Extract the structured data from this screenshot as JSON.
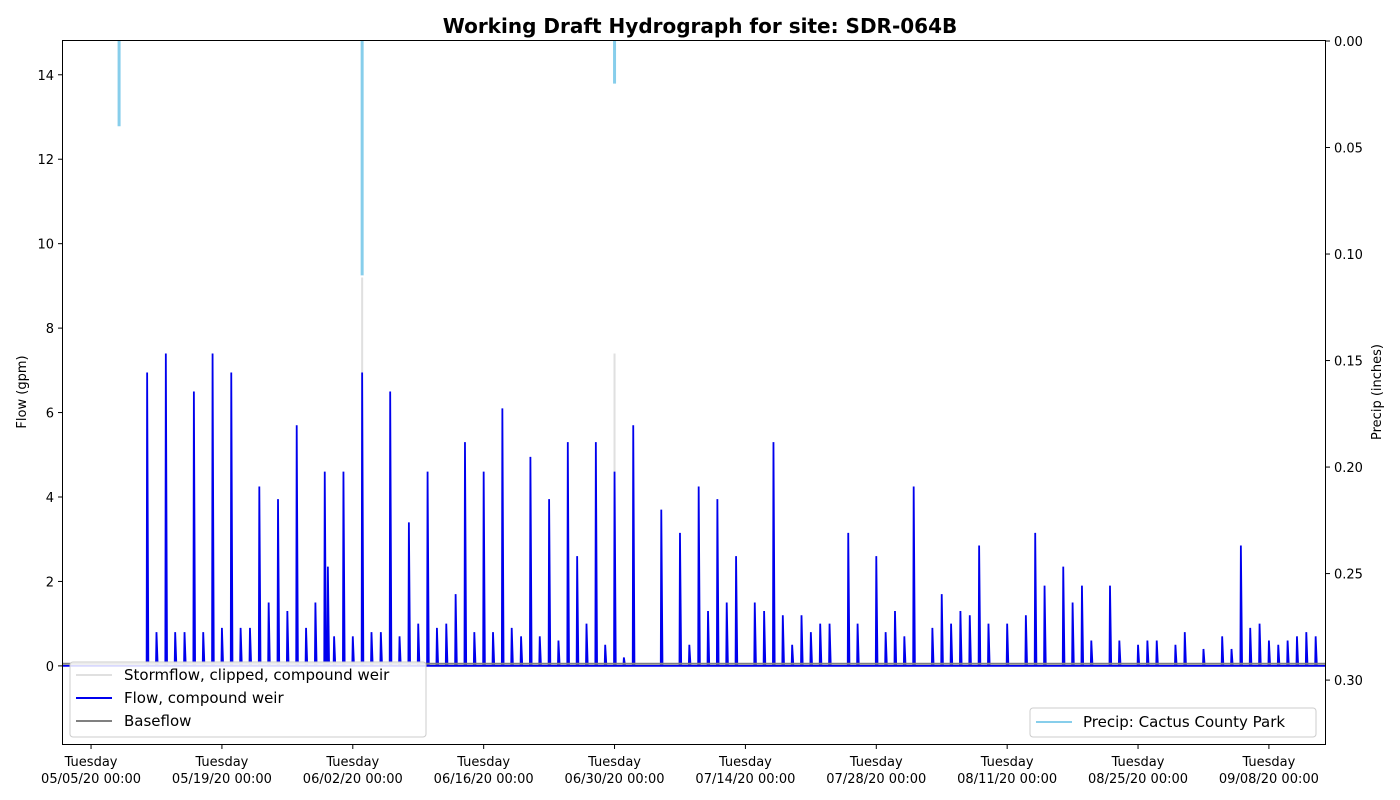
{
  "chart_data": {
    "type": "line",
    "title": "Working Draft Hydrograph for site: SDR-064B",
    "ylabel_left": "Flow (gpm)",
    "ylabel_right": "Precip (inches)",
    "x_axis": {
      "range": [
        "2020-05-02 00:00",
        "2020-09-14 00:00"
      ],
      "ticks": [
        {
          "date": "2020-05-05",
          "line1": "Tuesday",
          "line2": "05/05/20 00:00"
        },
        {
          "date": "2020-05-19",
          "line1": "Tuesday",
          "line2": "05/19/20 00:00"
        },
        {
          "date": "2020-06-02",
          "line1": "Tuesday",
          "line2": "06/02/20 00:00"
        },
        {
          "date": "2020-06-16",
          "line1": "Tuesday",
          "line2": "06/16/20 00:00"
        },
        {
          "date": "2020-06-30",
          "line1": "Tuesday",
          "line2": "06/30/20 00:00"
        },
        {
          "date": "2020-07-14",
          "line1": "Tuesday",
          "line2": "07/14/20 00:00"
        },
        {
          "date": "2020-07-28",
          "line1": "Tuesday",
          "line2": "07/28/20 00:00"
        },
        {
          "date": "2020-08-11",
          "line1": "Tuesday",
          "line2": "08/11/20 00:00"
        },
        {
          "date": "2020-08-25",
          "line1": "Tuesday",
          "line2": "08/25/20 00:00"
        },
        {
          "date": "2020-09-08",
          "line1": "Tuesday",
          "line2": "09/08/20 00:00"
        }
      ]
    },
    "y_left": {
      "range": [
        -1.85,
        14.8
      ],
      "ticks": [
        {
          "v": 0,
          "label": "0"
        },
        {
          "v": 2,
          "label": "2"
        },
        {
          "v": 4,
          "label": "4"
        },
        {
          "v": 6,
          "label": "6"
        },
        {
          "v": 8,
          "label": "8"
        },
        {
          "v": 10,
          "label": "10"
        },
        {
          "v": 12,
          "label": "12"
        },
        {
          "v": 14,
          "label": "14"
        }
      ]
    },
    "y_right": {
      "range": [
        0,
        0.33
      ],
      "inverted": true,
      "ticks": [
        {
          "v": 0,
          "label": "0.00"
        },
        {
          "v": 0.05,
          "label": "0.05"
        },
        {
          "v": 0.1,
          "label": "0.10"
        },
        {
          "v": 0.15,
          "label": "0.15"
        },
        {
          "v": 0.2,
          "label": "0.20"
        },
        {
          "v": 0.25,
          "label": "0.25"
        },
        {
          "v": 0.3,
          "label": "0.30"
        }
      ]
    },
    "legend_left": {
      "placement": "lower-left",
      "items": [
        {
          "name": "Stormflow, clipped, compound weir",
          "color": "#e0e0e0"
        },
        {
          "name": "Flow, compound weir",
          "color": "#0000ee"
        },
        {
          "name": "Baseflow",
          "color": "#808080"
        }
      ]
    },
    "legend_right": {
      "placement": "lower-right",
      "items": [
        {
          "name": "Precip: Cactus County Park",
          "color": "#87ceeb"
        }
      ]
    },
    "series": [
      {
        "name": "Flow, compound weir",
        "color": "#0000ee",
        "axis": "left",
        "peaks": [
          [
            "2020-05-11T00:00",
            6.95
          ],
          [
            "2020-05-12T00:00",
            0.8
          ],
          [
            "2020-05-13T00:00",
            7.4
          ],
          [
            "2020-05-14T00:00",
            0.8
          ],
          [
            "2020-05-15T00:00",
            0.8
          ],
          [
            "2020-05-16T00:00",
            6.5
          ],
          [
            "2020-05-17T00:00",
            0.8
          ],
          [
            "2020-05-18T00:00",
            7.4
          ],
          [
            "2020-05-19T00:00",
            0.9
          ],
          [
            "2020-05-20T00:00",
            6.95
          ],
          [
            "2020-05-21T00:00",
            0.9
          ],
          [
            "2020-05-22T00:00",
            0.9
          ],
          [
            "2020-05-23T00:00",
            4.25
          ],
          [
            "2020-05-24T00:00",
            1.5
          ],
          [
            "2020-05-25T00:00",
            3.95
          ],
          [
            "2020-05-26T00:00",
            1.3
          ],
          [
            "2020-05-27T00:00",
            5.7
          ],
          [
            "2020-05-28T00:00",
            0.9
          ],
          [
            "2020-05-29T00:00",
            1.5
          ],
          [
            "2020-05-30T00:00",
            4.6
          ],
          [
            "2020-05-30T08:00",
            2.35
          ],
          [
            "2020-05-31T00:00",
            0.7
          ],
          [
            "2020-06-01T00:00",
            4.6
          ],
          [
            "2020-06-02T00:00",
            0.7
          ],
          [
            "2020-06-03T00:00",
            6.95
          ],
          [
            "2020-06-04T00:00",
            0.8
          ],
          [
            "2020-06-05T00:00",
            0.8
          ],
          [
            "2020-06-06T00:00",
            6.5
          ],
          [
            "2020-06-07T00:00",
            0.7
          ],
          [
            "2020-06-08T00:00",
            3.4
          ],
          [
            "2020-06-09T00:00",
            1.0
          ],
          [
            "2020-06-10T00:00",
            4.6
          ],
          [
            "2020-06-11T00:00",
            0.9
          ],
          [
            "2020-06-12T00:00",
            1.0
          ],
          [
            "2020-06-13T00:00",
            1.7
          ],
          [
            "2020-06-14T00:00",
            5.3
          ],
          [
            "2020-06-15T00:00",
            0.8
          ],
          [
            "2020-06-16T00:00",
            4.6
          ],
          [
            "2020-06-17T00:00",
            0.8
          ],
          [
            "2020-06-18T00:00",
            6.1
          ],
          [
            "2020-06-19T00:00",
            0.9
          ],
          [
            "2020-06-20T00:00",
            0.7
          ],
          [
            "2020-06-21T00:00",
            4.95
          ],
          [
            "2020-06-22T00:00",
            0.7
          ],
          [
            "2020-06-23T00:00",
            3.95
          ],
          [
            "2020-06-24T00:00",
            0.6
          ],
          [
            "2020-06-25T00:00",
            5.3
          ],
          [
            "2020-06-26T00:00",
            2.6
          ],
          [
            "2020-06-27T00:00",
            1.0
          ],
          [
            "2020-06-28T00:00",
            5.3
          ],
          [
            "2020-06-29T00:00",
            0.5
          ],
          [
            "2020-06-30T00:00",
            4.6
          ],
          [
            "2020-07-01T00:00",
            0.2
          ],
          [
            "2020-07-02T00:00",
            5.7
          ],
          [
            "2020-07-05T00:00",
            3.7
          ],
          [
            "2020-07-07T00:00",
            3.15
          ],
          [
            "2020-07-08T00:00",
            0.5
          ],
          [
            "2020-07-09T00:00",
            4.25
          ],
          [
            "2020-07-10T00:00",
            1.3
          ],
          [
            "2020-07-11T00:00",
            3.95
          ],
          [
            "2020-07-12T00:00",
            1.5
          ],
          [
            "2020-07-13T00:00",
            2.6
          ],
          [
            "2020-07-15T00:00",
            1.5
          ],
          [
            "2020-07-16T00:00",
            1.3
          ],
          [
            "2020-07-17T00:00",
            5.3
          ],
          [
            "2020-07-18T00:00",
            1.2
          ],
          [
            "2020-07-19T00:00",
            0.5
          ],
          [
            "2020-07-20T00:00",
            1.2
          ],
          [
            "2020-07-21T00:00",
            0.8
          ],
          [
            "2020-07-22T00:00",
            1.0
          ],
          [
            "2020-07-23T00:00",
            1.0
          ],
          [
            "2020-07-25T00:00",
            3.15
          ],
          [
            "2020-07-26T00:00",
            1.0
          ],
          [
            "2020-07-28T00:00",
            2.6
          ],
          [
            "2020-07-29T00:00",
            0.8
          ],
          [
            "2020-07-30T00:00",
            1.3
          ],
          [
            "2020-07-31T00:00",
            0.7
          ],
          [
            "2020-08-01T00:00",
            4.25
          ],
          [
            "2020-08-03T00:00",
            0.9
          ],
          [
            "2020-08-04T00:00",
            1.7
          ],
          [
            "2020-08-05T00:00",
            1.0
          ],
          [
            "2020-08-06T00:00",
            1.3
          ],
          [
            "2020-08-07T00:00",
            1.2
          ],
          [
            "2020-08-08T00:00",
            2.85
          ],
          [
            "2020-08-09T00:00",
            1.0
          ],
          [
            "2020-08-11T00:00",
            1.0
          ],
          [
            "2020-08-13T00:00",
            1.2
          ],
          [
            "2020-08-14T00:00",
            3.15
          ],
          [
            "2020-08-15T00:00",
            1.9
          ],
          [
            "2020-08-17T00:00",
            2.35
          ],
          [
            "2020-08-18T00:00",
            1.5
          ],
          [
            "2020-08-19T00:00",
            1.9
          ],
          [
            "2020-08-20T00:00",
            0.6
          ],
          [
            "2020-08-22T00:00",
            1.9
          ],
          [
            "2020-08-23T00:00",
            0.6
          ],
          [
            "2020-08-25T00:00",
            0.5
          ],
          [
            "2020-08-26T00:00",
            0.6
          ],
          [
            "2020-08-27T00:00",
            0.6
          ],
          [
            "2020-08-29T00:00",
            0.5
          ],
          [
            "2020-08-30T00:00",
            0.8
          ],
          [
            "2020-09-01T00:00",
            0.4
          ],
          [
            "2020-09-03T00:00",
            0.7
          ],
          [
            "2020-09-04T00:00",
            0.4
          ],
          [
            "2020-09-05T00:00",
            2.85
          ],
          [
            "2020-09-06T00:00",
            0.9
          ],
          [
            "2020-09-07T00:00",
            1.0
          ],
          [
            "2020-09-08T00:00",
            0.6
          ],
          [
            "2020-09-09T00:00",
            0.5
          ],
          [
            "2020-09-10T00:00",
            0.6
          ],
          [
            "2020-09-11T00:00",
            0.7
          ],
          [
            "2020-09-12T00:00",
            0.8
          ],
          [
            "2020-09-13T00:00",
            0.7
          ]
        ]
      },
      {
        "name": "Stormflow, clipped, compound weir",
        "color": "#e0e0e0",
        "axis": "left",
        "peaks": [
          [
            "2020-06-03T00:00",
            9.2
          ],
          [
            "2020-06-30T00:00",
            7.4
          ],
          [
            "2020-07-17T00:00",
            3.2
          ]
        ]
      },
      {
        "name": "Baseflow",
        "color": "#808080",
        "axis": "left",
        "level": 0.05
      },
      {
        "name": "Precip: Cactus County Park",
        "color": "#87ceeb",
        "axis": "right",
        "bars": [
          [
            "2020-05-08T00:00",
            0.04
          ],
          [
            "2020-06-03T00:00",
            0.11
          ],
          [
            "2020-06-30T00:00",
            0.02
          ]
        ]
      }
    ]
  }
}
